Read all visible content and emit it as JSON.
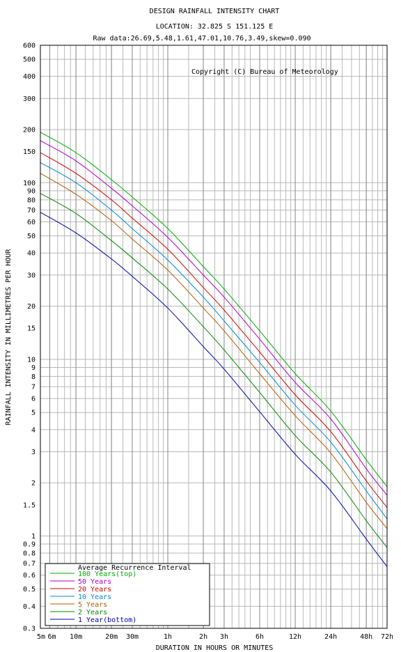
{
  "chart_data": {
    "type": "line",
    "title": "DESIGN RAINFALL INTENSITY CHART",
    "location": "LOCATION: 32.825 S 151.125 E",
    "raw_data": "Raw data:26.69,5.48,1.61,47.01,10.76,3.49,skew=0.090",
    "copyright": "Copyright (C) Bureau of Meteorology",
    "xlabel": "DURATION IN HOURS OR MINUTES",
    "ylabel": "RAINFALL INTENSITY IN MILLIMETRES PER HOUR",
    "x_scale": "log",
    "y_scale": "log",
    "xlim_hours": [
      0.0833,
      72
    ],
    "ylim": [
      0.3,
      600
    ],
    "grid": true,
    "x_tick_labels": [
      {
        "label": "5m",
        "hours": 0.0833
      },
      {
        "label": "6m",
        "hours": 0.1
      },
      {
        "label": "10m",
        "hours": 0.1667
      },
      {
        "label": "20m",
        "hours": 0.3333
      },
      {
        "label": "30m",
        "hours": 0.5
      },
      {
        "label": "1h",
        "hours": 1
      },
      {
        "label": "2h",
        "hours": 2
      },
      {
        "label": "3h",
        "hours": 3
      },
      {
        "label": "6h",
        "hours": 6
      },
      {
        "label": "12h",
        "hours": 12
      },
      {
        "label": "24h",
        "hours": 24
      },
      {
        "label": "48h",
        "hours": 48
      },
      {
        "label": "72h",
        "hours": 72
      }
    ],
    "y_tick_labels": [
      "600",
      "500",
      "400",
      "300",
      "200",
      "150",
      "100",
      "90",
      "80",
      "70",
      "60",
      "50",
      "40",
      "30",
      "20",
      "15",
      "10",
      "9",
      "8",
      "7",
      "6",
      "5",
      "4",
      "3",
      "2",
      "1.5",
      "1",
      "0.9",
      "0.8",
      "0.7",
      "0.6",
      "0.5",
      "0.4",
      "0.3"
    ],
    "legend": {
      "title": "Average Recurrence Interval",
      "placement": "bottom-left"
    },
    "x": [
      0.0833,
      0.1667,
      0.3333,
      0.5,
      1,
      2,
      3,
      6,
      12,
      24,
      48,
      72
    ],
    "series": [
      {
        "name": "100 Years(top)",
        "color": "#00aa00",
        "values": [
          193,
          148,
          104,
          83,
          55,
          33.5,
          25,
          14.5,
          8.3,
          5.1,
          2.7,
          1.9
        ]
      },
      {
        "name": "50 Years",
        "color": "#aa00cc",
        "values": [
          173,
          133,
          93,
          74,
          49,
          30,
          22.5,
          13,
          7.4,
          4.6,
          2.4,
          1.7
        ]
      },
      {
        "name": "20 Years",
        "color": "#cc0000",
        "values": [
          148,
          113,
          80,
          63,
          42,
          25.5,
          19,
          11,
          6.3,
          3.9,
          2.05,
          1.45
        ]
      },
      {
        "name": "10 Years",
        "color": "#0088cc",
        "values": [
          130,
          100,
          70,
          55,
          36.5,
          22.5,
          16.5,
          9.6,
          5.5,
          3.4,
          1.8,
          1.25
        ]
      },
      {
        "name": "5 Years",
        "color": "#b85a00",
        "values": [
          113,
          86,
          61,
          48,
          32,
          19.5,
          14.5,
          8.3,
          4.8,
          2.95,
          1.55,
          1.1
        ]
      },
      {
        "name": "2 Years",
        "color": "#008800",
        "values": [
          87,
          67,
          47,
          37.5,
          25,
          15.3,
          11.3,
          6.5,
          3.7,
          2.3,
          1.22,
          0.86
        ]
      },
      {
        "name": "1 Year(bottom)",
        "color": "#0000aa",
        "values": [
          68,
          52,
          37,
          29.5,
          19.5,
          11.8,
          8.8,
          5.05,
          2.9,
          1.8,
          0.96,
          0.67
        ]
      }
    ]
  }
}
